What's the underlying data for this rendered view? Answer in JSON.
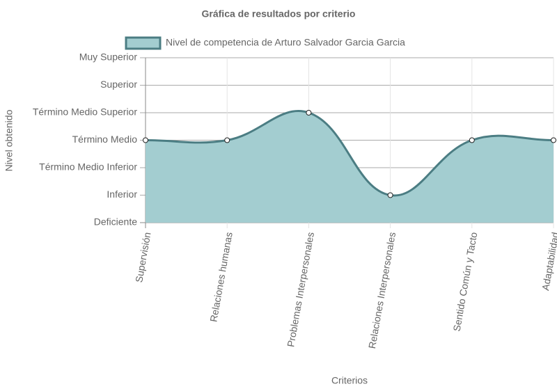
{
  "chart_data": {
    "type": "line",
    "title": "Gráfica de resultados por criterio",
    "x_label": "Criterios",
    "y_label": "Nivel obtenido",
    "categories": [
      "Supervisión",
      "Relaciones humanas",
      "Problemas Interpersonales",
      "Relaciones Interpersonales",
      "Sentido Común y Tacto",
      "Adaptabilidad"
    ],
    "series": [
      {
        "name": "Nivel de competencia de Arturo Salvador Garcia Garcia",
        "color": "#4b7d83",
        "fill": "#a3cdd0",
        "values": [
          3,
          3,
          4,
          1,
          3,
          3
        ]
      }
    ],
    "ylim": [
      0,
      6
    ],
    "yticks": [
      {
        "value": 0,
        "label": "Deficiente"
      },
      {
        "value": 1,
        "label": "Inferior"
      },
      {
        "value": 2,
        "label": "Término Medio Inferior"
      },
      {
        "value": 3,
        "label": "Término Medio"
      },
      {
        "value": 4,
        "label": "Término Medio Superior"
      },
      {
        "value": 5,
        "label": "Superior"
      },
      {
        "value": 6,
        "label": "Muy Superior"
      }
    ],
    "grid": true
  }
}
